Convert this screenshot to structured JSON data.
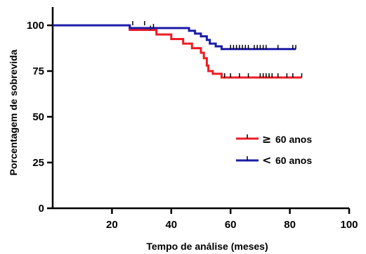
{
  "chart_data": {
    "type": "line",
    "subtype": "kaplan-meier-step",
    "xlabel": "Tempo de análise (meses)",
    "ylabel": "Porcentagem de sobrevida",
    "xlim": [
      0,
      100
    ],
    "ylim": [
      0,
      100
    ],
    "xticks": [
      20,
      40,
      60,
      80,
      100
    ],
    "yticks": [
      0,
      25,
      50,
      75,
      100
    ],
    "xtick_labels": [
      "20",
      "40",
      "60",
      "80",
      "100"
    ],
    "ytick_labels": [
      "0",
      "25",
      "50",
      "75",
      "100"
    ],
    "grid": false,
    "legend_position": "center-right",
    "series": [
      {
        "name": "≥ 60 anos",
        "legend_symbol": "≥",
        "legend_text": "60 anos",
        "color": "#ee1c24",
        "steps": [
          [
            0,
            100
          ],
          [
            26,
            100
          ],
          [
            26,
            97.5
          ],
          [
            35,
            97.5
          ],
          [
            35,
            95
          ],
          [
            40,
            95
          ],
          [
            40,
            92.5
          ],
          [
            44,
            92.5
          ],
          [
            44,
            90
          ],
          [
            47,
            90
          ],
          [
            47,
            87.5
          ],
          [
            50,
            87.5
          ],
          [
            50,
            85
          ],
          [
            51,
            85
          ],
          [
            51,
            82
          ],
          [
            52,
            82
          ],
          [
            52,
            78
          ],
          [
            52.5,
            78
          ],
          [
            52.5,
            75
          ],
          [
            54,
            75
          ],
          [
            54,
            73.5
          ],
          [
            57,
            73.5
          ],
          [
            57,
            71.5
          ],
          [
            84,
            71.5
          ]
        ],
        "censored": [
          [
            27,
            100
          ],
          [
            33,
            97.5
          ],
          [
            58,
            71.5
          ],
          [
            60,
            71.5
          ],
          [
            63,
            71.5
          ],
          [
            66,
            71.5
          ],
          [
            70,
            71.5
          ],
          [
            71,
            71.5
          ],
          [
            72,
            71.5
          ],
          [
            73,
            71.5
          ],
          [
            74,
            71.5
          ],
          [
            76,
            71.5
          ],
          [
            79,
            71.5
          ],
          [
            81,
            71.5
          ],
          [
            84,
            71.5
          ]
        ]
      },
      {
        "name": "< 60 anos",
        "legend_symbol": "<",
        "legend_text": "60 anos",
        "color": "#1c1ca8",
        "steps": [
          [
            0,
            100
          ],
          [
            26,
            100
          ],
          [
            26,
            98.5
          ],
          [
            46,
            98.5
          ],
          [
            46,
            97
          ],
          [
            48,
            97
          ],
          [
            48,
            95.5
          ],
          [
            50,
            95.5
          ],
          [
            50,
            94
          ],
          [
            52,
            94
          ],
          [
            52,
            92
          ],
          [
            53,
            92
          ],
          [
            53,
            90
          ],
          [
            55,
            90
          ],
          [
            55,
            88.5
          ],
          [
            57,
            88.5
          ],
          [
            57,
            87
          ],
          [
            82,
            87
          ]
        ],
        "censored": [
          [
            31,
            100
          ],
          [
            34,
            98.5
          ],
          [
            60,
            87
          ],
          [
            61,
            87
          ],
          [
            62,
            87
          ],
          [
            63,
            87
          ],
          [
            64,
            87
          ],
          [
            65,
            87
          ],
          [
            66,
            87
          ],
          [
            68,
            87
          ],
          [
            69,
            87
          ],
          [
            70,
            87
          ],
          [
            71,
            87
          ],
          [
            72,
            87
          ],
          [
            76,
            87
          ],
          [
            81,
            87
          ],
          [
            82,
            87
          ]
        ]
      }
    ]
  }
}
